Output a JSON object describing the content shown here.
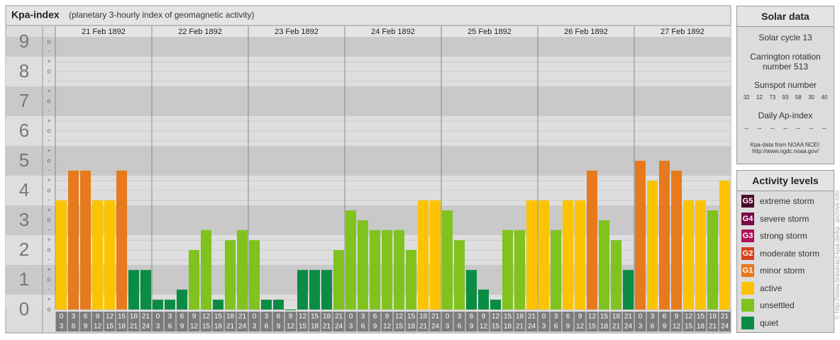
{
  "header": {
    "title": "Kpa-index",
    "subtitle": "(planetary 3-hourly index of geomagnetic activity)"
  },
  "chart_data": {
    "type": "bar",
    "days": [
      "21 Feb 1892",
      "22 Feb 1892",
      "23 Feb 1892",
      "24 Feb 1892",
      "25 Feb 1892",
      "26 Feb 1892",
      "27 Feb 1892"
    ],
    "slot_starts": [
      0,
      3,
      6,
      9,
      12,
      15,
      18,
      21
    ],
    "slot_ends": [
      3,
      6,
      9,
      12,
      15,
      18,
      21,
      24
    ],
    "values": [
      3.67,
      4.67,
      4.67,
      3.67,
      3.67,
      4.67,
      1.33,
      1.33,
      0.33,
      0.33,
      0.67,
      2,
      2.67,
      0.33,
      2.33,
      2.67,
      2.33,
      0.33,
      0.33,
      0,
      1.33,
      1.33,
      1.33,
      2,
      3.33,
      3,
      2.67,
      2.67,
      2.67,
      2,
      3.67,
      3.67,
      3.33,
      2.33,
      1.33,
      0.67,
      0.33,
      2.67,
      2.67,
      3.67,
      3.67,
      2.67,
      3.67,
      3.67,
      4.67,
      3,
      2.33,
      1.33,
      5,
      4.33,
      5,
      4.67,
      3.67,
      3.67,
      3.33,
      4.33
    ],
    "colors": [
      "#fcc400",
      "#e67a1c",
      "#e67a1c",
      "#fcc400",
      "#fcc400",
      "#e67a1c",
      "#0a8c44",
      "#0a8c44",
      "#0a8c44",
      "#0a8c44",
      "#0a8c44",
      "#80c21e",
      "#80c21e",
      "#0a8c44",
      "#80c21e",
      "#80c21e",
      "#80c21e",
      "#0a8c44",
      "#0a8c44",
      "#0a8c44",
      "#0a8c44",
      "#0a8c44",
      "#0a8c44",
      "#80c21e",
      "#80c21e",
      "#80c21e",
      "#80c21e",
      "#80c21e",
      "#80c21e",
      "#80c21e",
      "#fcc400",
      "#fcc400",
      "#80c21e",
      "#80c21e",
      "#0a8c44",
      "#0a8c44",
      "#0a8c44",
      "#80c21e",
      "#80c21e",
      "#fcc400",
      "#fcc400",
      "#80c21e",
      "#fcc400",
      "#fcc400",
      "#e67a1c",
      "#80c21e",
      "#80c21e",
      "#0a8c44",
      "#e67a1c",
      "#fcc400",
      "#e67a1c",
      "#e67a1c",
      "#fcc400",
      "#fcc400",
      "#80c21e",
      "#fcc400"
    ],
    "ylim": [
      0,
      9
    ],
    "yticks": [
      0,
      1,
      2,
      3,
      4,
      5,
      6,
      7,
      8,
      9
    ],
    "minor_ticks": [
      {
        "value": 0,
        "label": "o"
      },
      {
        "value": 0.33,
        "label": "+"
      },
      {
        "value": 0.67,
        "label": "-"
      },
      {
        "value": 1,
        "label": "o"
      },
      {
        "value": 1.33,
        "label": "+"
      },
      {
        "value": 1.67,
        "label": "-"
      },
      {
        "value": 2,
        "label": "o"
      },
      {
        "value": 2.33,
        "label": "+"
      },
      {
        "value": 2.67,
        "label": "-"
      },
      {
        "value": 3,
        "label": "o"
      },
      {
        "value": 3.33,
        "label": "+"
      },
      {
        "value": 3.67,
        "label": "-"
      },
      {
        "value": 4,
        "label": "o"
      },
      {
        "value": 4.33,
        "label": "+"
      },
      {
        "value": 4.67,
        "label": "-"
      },
      {
        "value": 5,
        "label": "o"
      },
      {
        "value": 5.33,
        "label": "+"
      },
      {
        "value": 5.67,
        "label": "-"
      },
      {
        "value": 6,
        "label": "o"
      },
      {
        "value": 6.33,
        "label": "+"
      },
      {
        "value": 6.67,
        "label": "-"
      },
      {
        "value": 7,
        "label": "o"
      },
      {
        "value": 7.33,
        "label": "+"
      },
      {
        "value": 7.67,
        "label": "-"
      },
      {
        "value": 8,
        "label": "o"
      },
      {
        "value": 8.33,
        "label": "+"
      },
      {
        "value": 8.67,
        "label": "-"
      },
      {
        "value": 9,
        "label": "o"
      }
    ],
    "grid": true
  },
  "solar_data": {
    "title": "Solar data",
    "cycle": "Solar cycle 13",
    "carrington": "Carrington rotation number 513",
    "sunspot_title": "Sunspot number",
    "sunspots": [
      32,
      12,
      73,
      93,
      58,
      30,
      40
    ],
    "ap_title": "Daily Ap-index",
    "ap": [
      "--",
      "--",
      "--",
      "--",
      "--",
      "--",
      "--"
    ],
    "source": "Kpa-data from NOAA NCEI:",
    "source_url": "http://www.ngdc.noaa.gov/"
  },
  "activity_levels": {
    "title": "Activity levels",
    "items": [
      {
        "badge": "G5",
        "label": "extreme storm",
        "color": "#4b0a2a"
      },
      {
        "badge": "G4",
        "label": "severe storm",
        "color": "#7a0a4a"
      },
      {
        "badge": "G3",
        "label": "strong storm",
        "color": "#b0105a"
      },
      {
        "badge": "G2",
        "label": "moderate storm",
        "color": "#d8401e"
      },
      {
        "badge": "G1",
        "label": "minor storm",
        "color": "#e8781c"
      },
      {
        "label": "active",
        "color": "#fcc400"
      },
      {
        "label": "unsettled",
        "color": "#80c21e"
      },
      {
        "label": "quiet",
        "color": "#0a8c44"
      }
    ]
  },
  "watermark": "© http://www.tesseract-kpa.de/kp_archive.info"
}
